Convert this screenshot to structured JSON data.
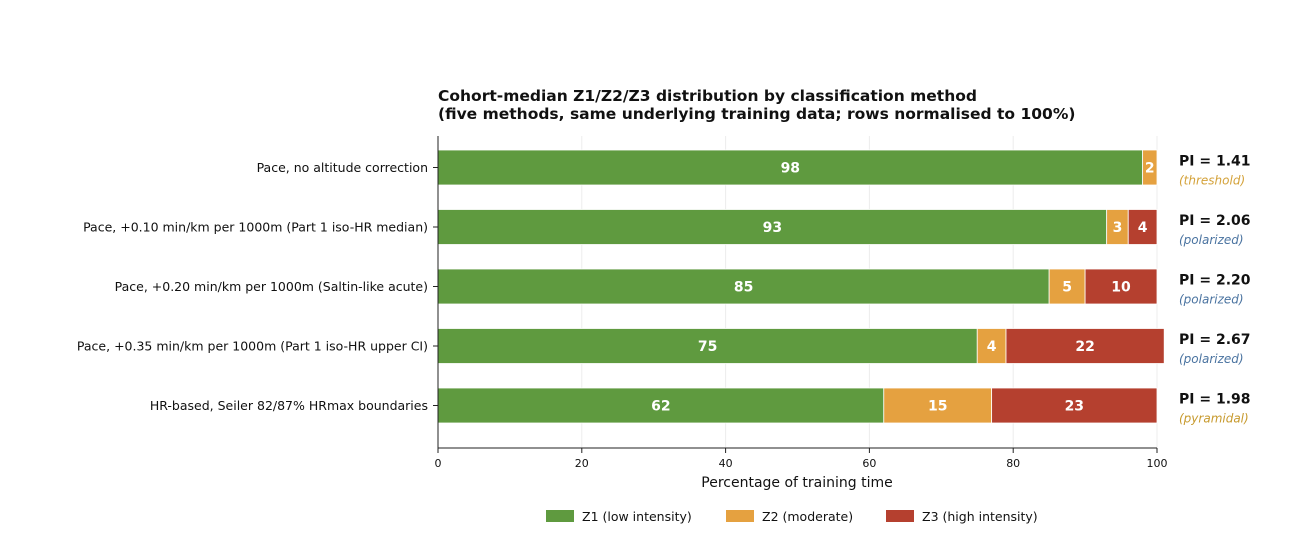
{
  "chart_data": {
    "type": "bar",
    "orientation": "horizontal",
    "stacked": true,
    "title_lines": [
      "Cohort-median Z1/Z2/Z3 distribution by classification method",
      "(five methods, same underlying training data; rows normalised to 100%)"
    ],
    "xlabel": "Percentage of training time",
    "ylabel": "",
    "xlim": [
      0,
      100
    ],
    "xticks": [
      "0",
      "20",
      "40",
      "60",
      "80",
      "100"
    ],
    "grid": "vertical",
    "legend_placement": "bottom-center",
    "categories": [
      "Pace, no altitude correction",
      "Pace, +0.10 min/km per 1000m (Part 1 iso-HR median)",
      "Pace, +0.20 min/km per 1000m (Saltin-like acute)",
      "Pace, +0.35 min/km per 1000m (Part 1 iso-HR upper CI)",
      "HR-based, Seiler 82/87% HRmax boundaries"
    ],
    "series": [
      {
        "name": "Z1 (low intensity)",
        "color": "#5f9a3f",
        "values": [
          98,
          93,
          85,
          75,
          62
        ]
      },
      {
        "name": "Z2 (moderate)",
        "color": "#e5a140",
        "values": [
          2,
          3,
          5,
          4,
          15
        ]
      },
      {
        "name": "Z3 (high intensity)",
        "color": "#b5402f",
        "values": [
          0,
          4,
          10,
          22,
          23
        ]
      }
    ],
    "annotations": [
      {
        "pi": "PI = 1.41",
        "class": "(threshold)",
        "color": "#d4a23a"
      },
      {
        "pi": "PI = 2.06",
        "class": "(polarized)",
        "color": "#4a73a0"
      },
      {
        "pi": "PI = 2.20",
        "class": "(polarized)",
        "color": "#4a73a0"
      },
      {
        "pi": "PI = 2.67",
        "class": "(polarized)",
        "color": "#4a73a0"
      },
      {
        "pi": "PI = 1.98",
        "class": "(pyramidal)",
        "color": "#c79a2e"
      }
    ]
  }
}
